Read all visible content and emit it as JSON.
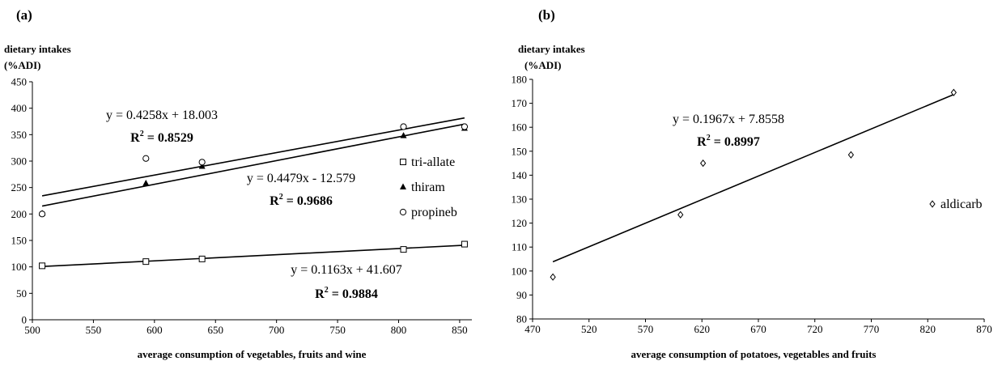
{
  "chart_data": [
    {
      "type": "scatter",
      "panel_label": "(a)",
      "ylabel_line1": "dietary intakes",
      "ylabel_line2": "(%ADI)",
      "xlabel": "average consumption of vegetables, fruits and wine",
      "xlim": [
        500,
        860
      ],
      "ylim": [
        0,
        450
      ],
      "xticks": [
        500,
        550,
        600,
        650,
        700,
        750,
        800,
        850
      ],
      "yticks": [
        0,
        50,
        100,
        150,
        200,
        250,
        300,
        350,
        400,
        450
      ],
      "series": [
        {
          "name": "tri-allate",
          "marker": "square",
          "x": [
            508,
            593,
            639,
            804,
            854
          ],
          "y": [
            102,
            110,
            115,
            133,
            143
          ],
          "trend": {
            "slope": 0.1163,
            "intercept": 41.607,
            "x_range": [
              508,
              854
            ]
          },
          "equation": "y = 0.1163x + 41.607",
          "r2_label": "R",
          "r2_value": " = 0.9884"
        },
        {
          "name": "thiram",
          "marker": "triangle",
          "x": [
            508,
            593,
            639,
            804,
            854
          ],
          "y": [
            201,
            258,
            290,
            348,
            362
          ],
          "trend": {
            "slope": 0.4479,
            "intercept": -12.579,
            "x_range": [
              508,
              854
            ]
          },
          "equation": "y = 0.4479x - 12.579",
          "r2_label": "R",
          "r2_value": " = 0.9686"
        },
        {
          "name": "propineb",
          "marker": "circle",
          "x": [
            508,
            593,
            639,
            804,
            854
          ],
          "y": [
            200,
            305,
            298,
            365,
            365
          ],
          "trend": {
            "slope": 0.4258,
            "intercept": 18.003,
            "x_range": [
              508,
              854
            ]
          },
          "equation": "y = 0.4258x + 18.003",
          "r2_label": "R",
          "r2_value": " = 0.8529"
        }
      ],
      "legend_position": "right"
    },
    {
      "type": "scatter",
      "panel_label": "(b)",
      "ylabel_line1": "dietary intakes",
      "ylabel_line2": "(%ADI)",
      "xlabel": "average consumption of potatoes, vegetables and fruits",
      "xlim": [
        470,
        870
      ],
      "ylim": [
        80,
        180
      ],
      "xticks": [
        470,
        520,
        570,
        620,
        670,
        720,
        770,
        820,
        870
      ],
      "yticks": [
        80,
        90,
        100,
        110,
        120,
        130,
        140,
        150,
        160,
        170,
        180
      ],
      "series": [
        {
          "name": "aldicarb",
          "marker": "diamond",
          "x": [
            488,
            601,
            621,
            752,
            843
          ],
          "y": [
            97.5,
            123.5,
            145,
            148.5,
            174.5
          ],
          "trend": {
            "slope": 0.1967,
            "intercept": 7.8558,
            "x_range": [
              488,
              843
            ]
          },
          "equation": "y = 0.1967x + 7.8558",
          "r2_label": "R",
          "r2_value": " = 0.8997"
        }
      ],
      "legend_position": "right"
    }
  ]
}
